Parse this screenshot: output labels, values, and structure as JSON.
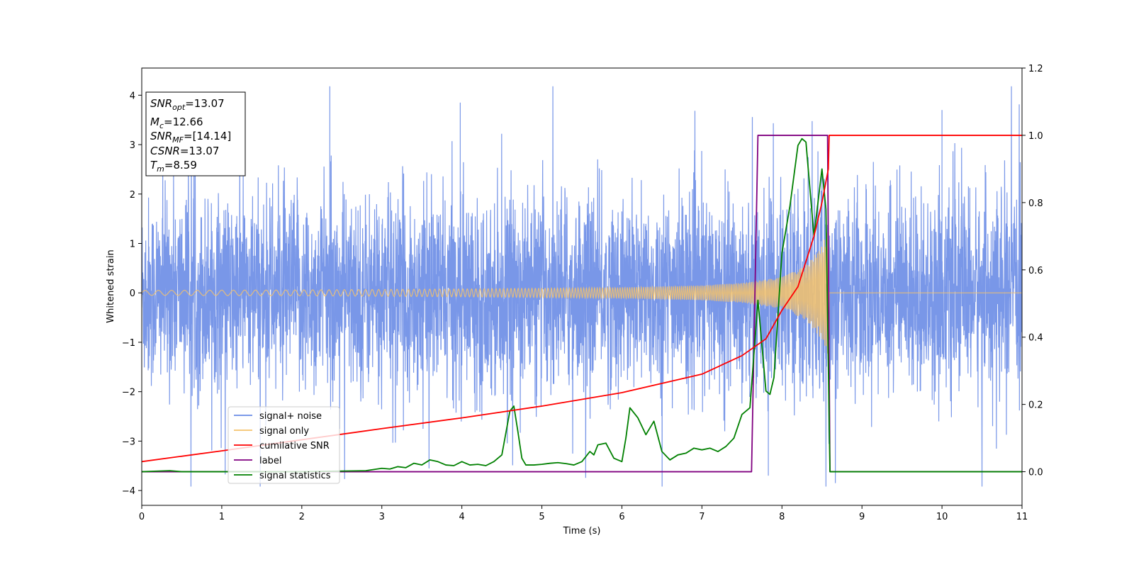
{
  "chart_data": {
    "type": "line",
    "title": "",
    "xlabel": "Time (s)",
    "ylabel": "Whitened strain",
    "xlim": [
      0,
      11
    ],
    "ylim": [
      -4.3,
      4.55
    ],
    "y2lim": [
      -0.1,
      1.2
    ],
    "xticks": [
      0,
      1,
      2,
      3,
      4,
      5,
      6,
      7,
      8,
      9,
      10,
      11
    ],
    "yticks": [
      -4,
      -3,
      -2,
      -1,
      0,
      1,
      2,
      3,
      4
    ],
    "y2ticks": [
      "0.0",
      "0.2",
      "0.4",
      "0.6",
      "0.8",
      "1.0",
      "1.2"
    ],
    "grid": false,
    "legend_placement": "lower-left",
    "legend": [
      {
        "label": "signal+ noise",
        "color": "#6a8ce6"
      },
      {
        "label": "signal only",
        "color": "#f5c26b"
      },
      {
        "label": "cumilative SNR",
        "color": "#ff0000"
      },
      {
        "label": "label",
        "color": "#800080"
      },
      {
        "label": "signal statistics",
        "color": "#008000"
      }
    ],
    "annotation": {
      "lines": [
        {
          "base": "SNR",
          "sub": "opt",
          "value": "=13.07"
        },
        {
          "base": "M",
          "sub": "c",
          "value": "=12.66"
        },
        {
          "base": "SNR",
          "sub": "MF",
          "value": "=[14.14]"
        },
        {
          "base": "CSNR",
          "sub": "",
          "value": "=13.07"
        },
        {
          "base": "T",
          "sub": "m",
          "value": "=8.59"
        }
      ]
    },
    "series": [
      {
        "name": "signal+ noise",
        "axis": "left",
        "kind": "noise_envelope",
        "color": "#6a8ce6",
        "merger_time": 8.59,
        "noise_sigma": 1.0,
        "extremes": {
          "max": 4.18,
          "min": -3.92
        }
      },
      {
        "name": "signal only",
        "axis": "left",
        "kind": "chirp_envelope",
        "color": "#f5c26b",
        "merger_time": 8.59,
        "envelope": {
          "t": [
            0,
            2,
            4,
            6,
            7,
            7.5,
            8,
            8.3,
            8.5,
            8.59
          ],
          "amp": [
            0.05,
            0.06,
            0.08,
            0.11,
            0.15,
            0.2,
            0.32,
            0.55,
            0.95,
            1.35
          ]
        }
      },
      {
        "name": "cumilative SNR",
        "axis": "right",
        "color": "#ff0000",
        "x": [
          0,
          1,
          2,
          3,
          4,
          5,
          6,
          7,
          7.5,
          7.8,
          8.0,
          8.2,
          8.4,
          8.5,
          8.58,
          8.59,
          8.6,
          11
        ],
        "y": [
          0.03,
          0.062,
          0.095,
          0.128,
          0.16,
          0.195,
          0.235,
          0.29,
          0.345,
          0.395,
          0.48,
          0.55,
          0.7,
          0.8,
          0.9,
          1.0,
          1.0,
          1.0
        ]
      },
      {
        "name": "label",
        "axis": "right",
        "color": "#800080",
        "x": [
          0,
          7.62,
          7.7,
          8.57,
          8.6,
          11
        ],
        "y": [
          0.0,
          0.0,
          1.0,
          1.0,
          0.0,
          0.0
        ]
      },
      {
        "name": "signal statistics",
        "axis": "right",
        "color": "#008000",
        "x": [
          0,
          0.35,
          0.5,
          1,
          2,
          2.8,
          3.0,
          3.1,
          3.2,
          3.3,
          3.4,
          3.5,
          3.6,
          3.7,
          3.8,
          3.9,
          4.0,
          4.1,
          4.2,
          4.3,
          4.4,
          4.5,
          4.6,
          4.65,
          4.7,
          4.75,
          4.8,
          4.9,
          5.0,
          5.1,
          5.2,
          5.3,
          5.4,
          5.5,
          5.6,
          5.65,
          5.7,
          5.8,
          5.9,
          6.0,
          6.05,
          6.1,
          6.2,
          6.3,
          6.4,
          6.5,
          6.6,
          6.7,
          6.8,
          6.9,
          7.0,
          7.1,
          7.2,
          7.3,
          7.4,
          7.5,
          7.6,
          7.7,
          7.8,
          7.85,
          7.9,
          8.0,
          8.1,
          8.2,
          8.25,
          8.3,
          8.4,
          8.5,
          8.55,
          8.6,
          9,
          10,
          11
        ],
        "y": [
          0.0,
          0.003,
          0.0,
          0.0,
          0.0,
          0.003,
          0.01,
          0.008,
          0.015,
          0.012,
          0.025,
          0.02,
          0.035,
          0.03,
          0.02,
          0.018,
          0.03,
          0.02,
          0.022,
          0.018,
          0.03,
          0.05,
          0.18,
          0.195,
          0.12,
          0.04,
          0.02,
          0.02,
          0.022,
          0.025,
          0.027,
          0.024,
          0.02,
          0.03,
          0.06,
          0.05,
          0.08,
          0.085,
          0.04,
          0.03,
          0.1,
          0.19,
          0.16,
          0.11,
          0.15,
          0.06,
          0.035,
          0.05,
          0.055,
          0.07,
          0.065,
          0.07,
          0.06,
          0.075,
          0.1,
          0.17,
          0.19,
          0.51,
          0.24,
          0.23,
          0.28,
          0.65,
          0.79,
          0.97,
          0.99,
          0.98,
          0.7,
          0.9,
          0.78,
          0.0,
          0.0,
          0.0,
          0.0
        ]
      }
    ]
  }
}
